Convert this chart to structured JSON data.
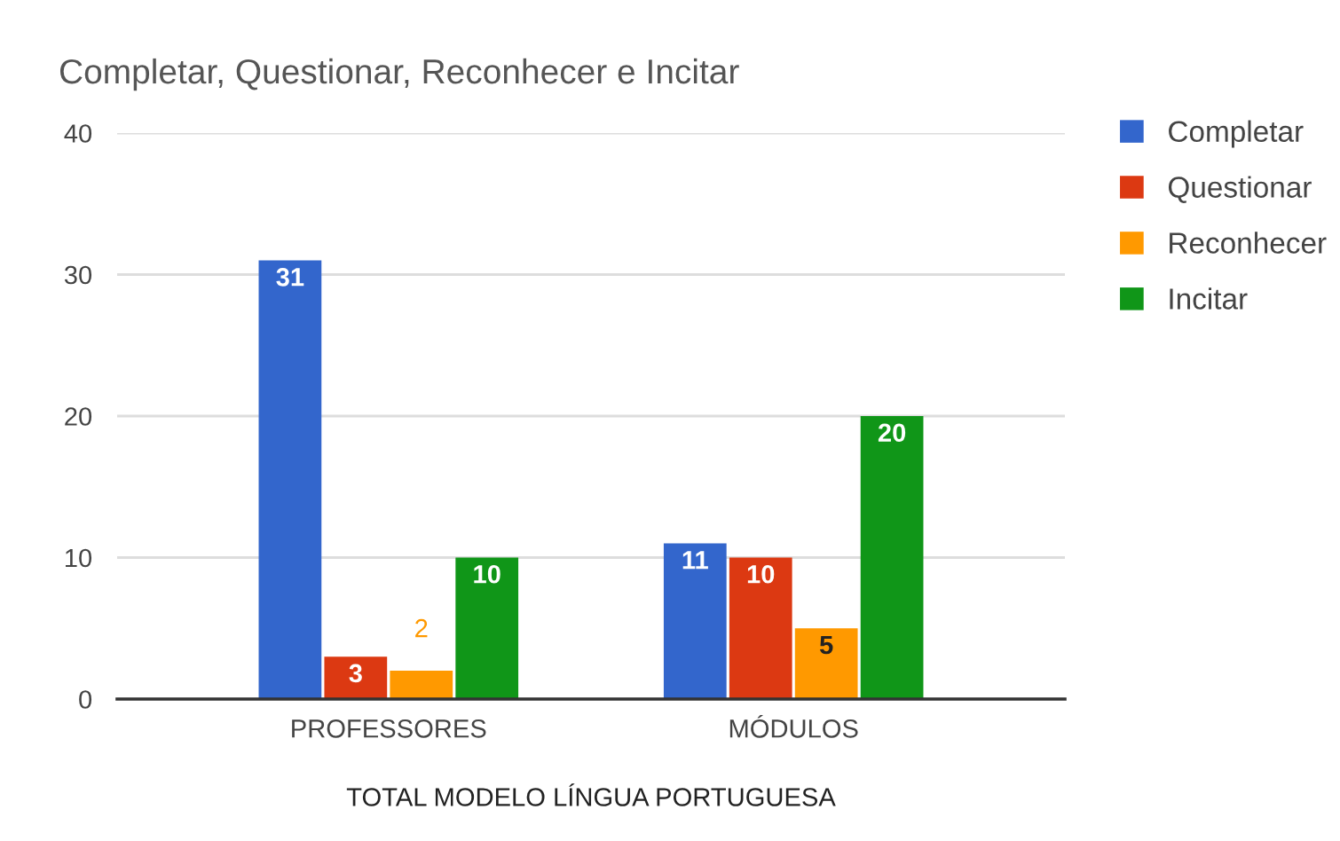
{
  "chart_data": {
    "type": "bar",
    "title": "Completar, Questionar, Reconhecer e Incitar",
    "xlabel": "TOTAL MODELO LÍNGUA PORTUGUESA",
    "categories": [
      "PROFESSORES",
      "MÓDULOS"
    ],
    "series": [
      {
        "name": "Completar",
        "color": "#3366cc",
        "values": [
          31,
          11
        ]
      },
      {
        "name": "Questionar",
        "color": "#dc3912",
        "values": [
          3,
          10
        ]
      },
      {
        "name": "Reconhecer",
        "color": "#ff9900",
        "values": [
          2,
          5
        ]
      },
      {
        "name": "Incitar",
        "color": "#109618",
        "values": [
          10,
          20
        ]
      }
    ],
    "ylim": [
      0,
      40
    ],
    "yticks": [
      0,
      10,
      20,
      30,
      40
    ],
    "grid": "y",
    "legend": "top right",
    "data_labels": true
  }
}
